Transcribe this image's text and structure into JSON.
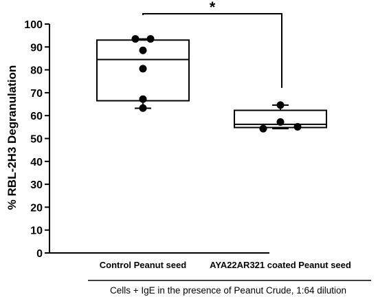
{
  "chart_data": {
    "type": "box",
    "ylabel": "% RBL-2H3 Degranulation",
    "ylim": [
      0,
      100
    ],
    "yticks": [
      0,
      10,
      20,
      30,
      40,
      50,
      60,
      70,
      80,
      90,
      100
    ],
    "categories": [
      "Control Peanut seed",
      "AYA22AR321 coated Peanut seed"
    ],
    "boxes": [
      {
        "category": "Control Peanut seed",
        "min": 63.2,
        "q1": 66.5,
        "median": 84.5,
        "q3": 93.0,
        "max": 93.5
      },
      {
        "category": "AYA22AR321 coated Peanut seed",
        "min": 54.3,
        "q1": 54.8,
        "median": 56.2,
        "q3": 62.3,
        "max": 64.6
      }
    ],
    "points": [
      {
        "category": "Control Peanut seed",
        "values": [
          93.5,
          93.5,
          88.5,
          80.5,
          67.2,
          63.3
        ]
      },
      {
        "category": "AYA22AR321 coated Peanut seed",
        "values": [
          64.6,
          57.2,
          55.1,
          54.3
        ]
      }
    ],
    "significance": {
      "label": "*",
      "between": [
        "Control Peanut seed",
        "AYA22AR321 coated Peanut seed"
      ]
    },
    "footnote": "Cells + IgE in the presence of Peanut Crude, 1:64 dilution"
  }
}
